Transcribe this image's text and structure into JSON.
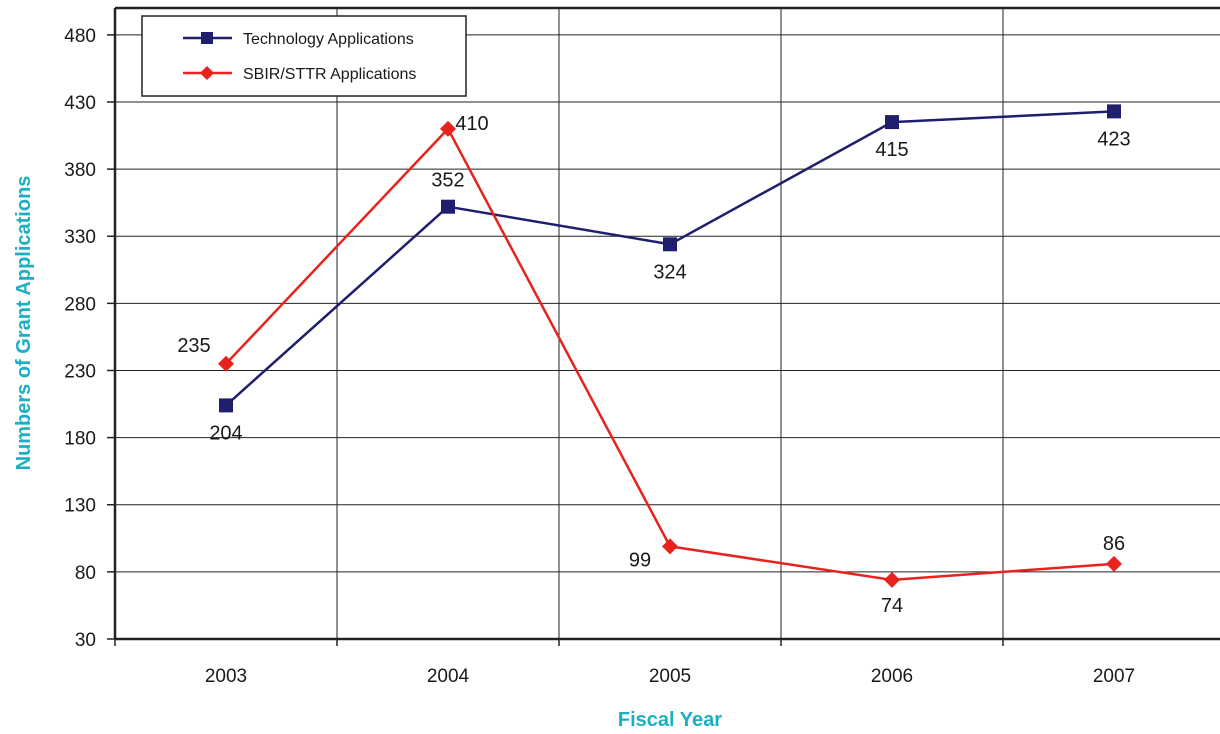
{
  "chart_data": {
    "type": "line",
    "categories": [
      "2003",
      "2004",
      "2005",
      "2006",
      "2007"
    ],
    "xlabel": "Fiscal Year",
    "ylabel": "Numbers of Grant Applications",
    "ylim": [
      30,
      500
    ],
    "yticks": [
      30,
      80,
      130,
      180,
      230,
      280,
      330,
      380,
      430,
      480
    ],
    "grid": true,
    "legend_position": "top-left",
    "axis_title_color": "#1aafc4",
    "series": [
      {
        "name": "Technology Applications",
        "values": [
          204,
          352,
          324,
          415,
          423
        ],
        "labels": [
          "204",
          "352",
          "324",
          "415",
          "423"
        ],
        "color": "#1f1f6e",
        "marker": "square"
      },
      {
        "name": "SBIR/STTR Applications",
        "values": [
          235,
          410,
          99,
          74,
          86
        ],
        "labels": [
          "235",
          "410",
          "99",
          "74",
          "86"
        ],
        "color": "#e8231e",
        "marker": "diamond"
      }
    ]
  }
}
